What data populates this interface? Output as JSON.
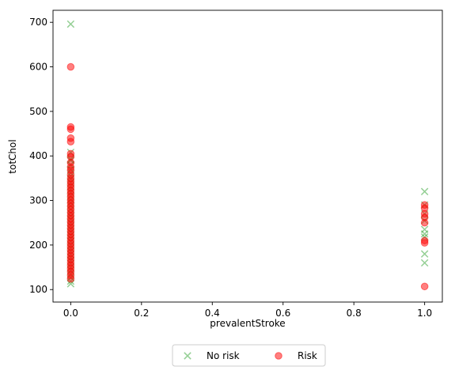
{
  "chart_data": {
    "type": "scatter",
    "xlabel": "prevalentStroke",
    "ylabel": "totChol",
    "xlim": [
      -0.05,
      1.05
    ],
    "ylim": [
      72,
      727
    ],
    "xticks": [
      "0.0",
      "0.2",
      "0.4",
      "0.6",
      "0.8",
      "1.0"
    ],
    "xtick_values": [
      0.0,
      0.2,
      0.4,
      0.6,
      0.8,
      1.0
    ],
    "yticks": [
      "100",
      "200",
      "300",
      "400",
      "500",
      "600",
      "700"
    ],
    "ytick_values": [
      100,
      200,
      300,
      400,
      500,
      600,
      700
    ],
    "grid": false,
    "legend_position": "bottom-center (below plot)",
    "series": [
      {
        "name": "No risk",
        "marker": "x",
        "color": "#2ca02c",
        "points": [
          [
            0,
            696
          ],
          [
            0,
            408
          ],
          [
            0,
            393
          ],
          [
            0,
            390
          ],
          [
            0,
            380
          ],
          [
            0,
            370
          ],
          [
            0,
            362
          ],
          [
            0,
            355
          ],
          [
            0,
            348
          ],
          [
            0,
            340
          ],
          [
            0,
            332
          ],
          [
            0,
            325
          ],
          [
            0,
            318
          ],
          [
            0,
            310
          ],
          [
            0,
            302
          ],
          [
            0,
            295
          ],
          [
            0,
            288
          ],
          [
            0,
            280
          ],
          [
            0,
            272
          ],
          [
            0,
            265
          ],
          [
            0,
            258
          ],
          [
            0,
            250
          ],
          [
            0,
            243
          ],
          [
            0,
            236
          ],
          [
            0,
            229
          ],
          [
            0,
            222
          ],
          [
            0,
            215
          ],
          [
            0,
            208
          ],
          [
            0,
            200
          ],
          [
            0,
            193
          ],
          [
            0,
            186
          ],
          [
            0,
            179
          ],
          [
            0,
            172
          ],
          [
            0,
            165
          ],
          [
            0,
            158
          ],
          [
            0,
            150
          ],
          [
            0,
            143
          ],
          [
            0,
            135
          ],
          [
            0,
            127
          ],
          [
            0,
            119
          ],
          [
            0,
            113
          ],
          [
            1,
            320
          ],
          [
            1,
            290
          ],
          [
            1,
            270
          ],
          [
            1,
            255
          ],
          [
            1,
            235
          ],
          [
            1,
            225
          ],
          [
            1,
            218
          ],
          [
            1,
            180
          ],
          [
            1,
            160
          ]
        ]
      },
      {
        "name": "Risk",
        "marker": "o",
        "color": "#ff0000",
        "points": [
          [
            0,
            600
          ],
          [
            0,
            465
          ],
          [
            0,
            460
          ],
          [
            0,
            440
          ],
          [
            0,
            432
          ],
          [
            0,
            405
          ],
          [
            0,
            398
          ],
          [
            0,
            385
          ],
          [
            0,
            375
          ],
          [
            0,
            368
          ],
          [
            0,
            358
          ],
          [
            0,
            350
          ],
          [
            0,
            343
          ],
          [
            0,
            336
          ],
          [
            0,
            329
          ],
          [
            0,
            322
          ],
          [
            0,
            315
          ],
          [
            0,
            308
          ],
          [
            0,
            301
          ],
          [
            0,
            294
          ],
          [
            0,
            287
          ],
          [
            0,
            280
          ],
          [
            0,
            273
          ],
          [
            0,
            266
          ],
          [
            0,
            259
          ],
          [
            0,
            252
          ],
          [
            0,
            245
          ],
          [
            0,
            238
          ],
          [
            0,
            231
          ],
          [
            0,
            224
          ],
          [
            0,
            217
          ],
          [
            0,
            210
          ],
          [
            0,
            203
          ],
          [
            0,
            196
          ],
          [
            0,
            189
          ],
          [
            0,
            182
          ],
          [
            0,
            175
          ],
          [
            0,
            168
          ],
          [
            0,
            161
          ],
          [
            0,
            154
          ],
          [
            0,
            147
          ],
          [
            0,
            140
          ],
          [
            0,
            132
          ],
          [
            0,
            124
          ],
          [
            1,
            290
          ],
          [
            1,
            283
          ],
          [
            1,
            270
          ],
          [
            1,
            262
          ],
          [
            1,
            250
          ],
          [
            1,
            210
          ],
          [
            1,
            205
          ],
          [
            1,
            107
          ]
        ]
      }
    ]
  }
}
